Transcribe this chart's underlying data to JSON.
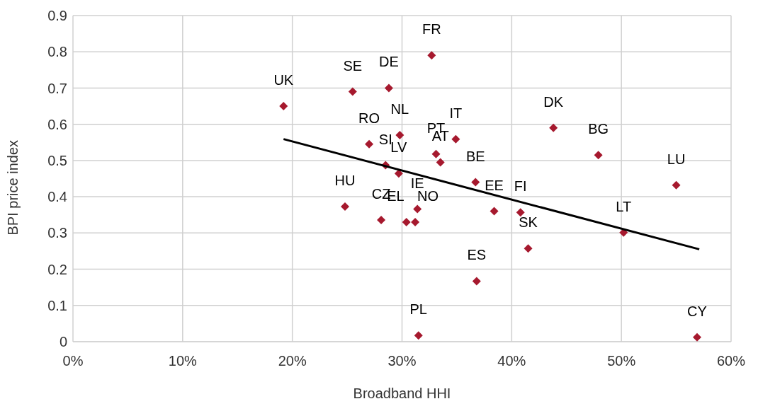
{
  "chart_data": {
    "type": "scatter",
    "xlabel": "Broadband HHI",
    "ylabel": "BPI price index",
    "xlim": [
      0,
      60
    ],
    "ylim": [
      0,
      0.9
    ],
    "xticks": [
      {
        "value": 0,
        "label": "0%"
      },
      {
        "value": 10,
        "label": "10%"
      },
      {
        "value": 20,
        "label": "20%"
      },
      {
        "value": 30,
        "label": "30%"
      },
      {
        "value": 40,
        "label": "40%"
      },
      {
        "value": 50,
        "label": "50%"
      },
      {
        "value": 60,
        "label": "60%"
      }
    ],
    "yticks": [
      0,
      0.1,
      0.2,
      0.3,
      0.4,
      0.5,
      0.6,
      0.7,
      0.8,
      0.9
    ],
    "grid": true,
    "marker": "diamond",
    "series": [
      {
        "color": "#a6192e",
        "x": [
          19.2,
          25.5,
          28.8,
          32.7,
          27.0,
          29.8,
          28.5,
          29.7,
          34.9,
          33.1,
          33.5,
          36.7,
          38.4,
          24.8,
          28.1,
          30.4,
          31.2,
          31.4,
          36.8,
          31.5,
          41.5,
          40.8,
          43.8,
          47.9,
          55.0,
          50.2,
          56.9
        ],
        "values": [
          0.65,
          0.69,
          0.7,
          0.79,
          0.545,
          0.57,
          0.487,
          0.464,
          0.559,
          0.518,
          0.495,
          0.44,
          0.36,
          0.373,
          0.336,
          0.33,
          0.33,
          0.366,
          0.167,
          0.017,
          0.257,
          0.357,
          0.59,
          0.515,
          0.432,
          0.301,
          0.012
        ],
        "value_labels": [
          "UK",
          "SE",
          "DE",
          "FR",
          "RO",
          "NL",
          "SI",
          "LV",
          "IT",
          "PT",
          "AT",
          "BE",
          "EE",
          "HU",
          "CZ",
          "EL",
          "NO",
          "IE",
          "ES",
          "PL",
          "SK",
          "FI",
          "DK",
          "BG",
          "LU",
          "LT",
          "CY"
        ]
      },
      {
        "type": "line",
        "marker": "none",
        "color": "#000000",
        "x": [
          19.2,
          57.1
        ],
        "values": [
          0.559,
          0.255
        ]
      }
    ]
  }
}
